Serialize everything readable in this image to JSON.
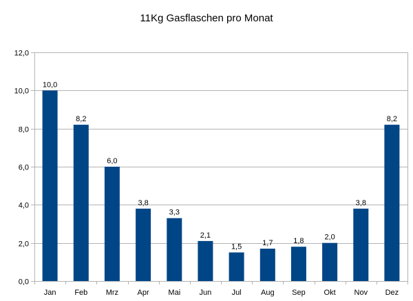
{
  "chart_data": {
    "type": "bar",
    "title": "11Kg Gasflaschen pro Monat",
    "categories": [
      "Jan",
      "Feb",
      "Mrz",
      "Apr",
      "Mai",
      "Jun",
      "Jul",
      "Aug",
      "Sep",
      "Okt",
      "Nov",
      "Dez"
    ],
    "values": [
      10.0,
      8.2,
      6.0,
      3.8,
      3.3,
      2.1,
      1.5,
      1.7,
      1.8,
      2.0,
      3.8,
      8.2
    ],
    "data_labels": [
      "10,0",
      "8,2",
      "6,0",
      "3,8",
      "3,3",
      "2,1",
      "1,5",
      "1,7",
      "1,8",
      "2,0",
      "3,8",
      "8,2"
    ],
    "ylim": [
      0,
      12
    ],
    "yticks": [
      0,
      2,
      4,
      6,
      8,
      10,
      12
    ],
    "ytick_labels": [
      "0,0",
      "2,0",
      "4,0",
      "6,0",
      "8,0",
      "10,0",
      "12,0"
    ],
    "grid": true,
    "legend": false,
    "bar_color": "#004586",
    "grid_color": "#b3b3b3"
  }
}
